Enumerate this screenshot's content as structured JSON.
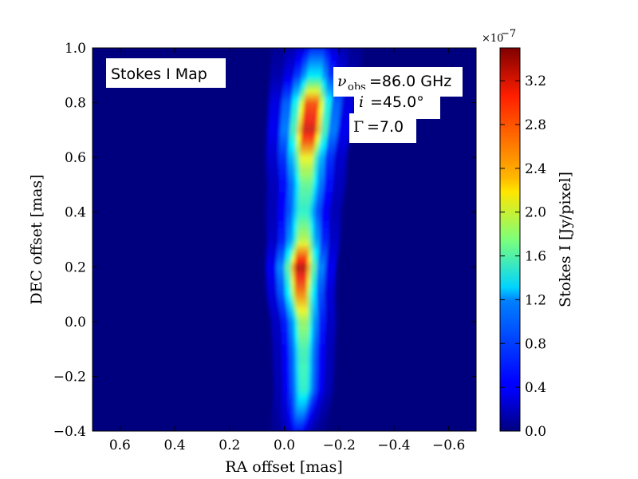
{
  "chart_data": {
    "type": "heatmap",
    "title": "",
    "xlabel": "RA offset [mas]",
    "ylabel": "DEC offset [mas]",
    "xlim": [
      0.7,
      -0.7
    ],
    "ylim": [
      -0.4,
      1.0
    ],
    "x_ticks": [
      "0.6",
      "0.4",
      "0.2",
      "0.0",
      "−0.2",
      "−0.4",
      "−0.6"
    ],
    "x_tick_values": [
      0.6,
      0.4,
      0.2,
      0.0,
      -0.2,
      -0.4,
      -0.6
    ],
    "y_ticks": [
      "−0.4",
      "−0.2",
      "0.0",
      "0.2",
      "0.4",
      "0.6",
      "0.8",
      "1.0"
    ],
    "y_tick_values": [
      -0.4,
      -0.2,
      0.0,
      0.2,
      0.4,
      0.6,
      0.8,
      1.0
    ],
    "colorbar": {
      "label": "Stokes I [Jy/pixel]",
      "multiplier": "×10",
      "exponent": "−7",
      "range": [
        0.0,
        3.5
      ],
      "ticks": [
        "0.0",
        "0.4",
        "0.8",
        "1.2",
        "1.6",
        "2.0",
        "2.4",
        "2.8",
        "3.2"
      ],
      "tick_values": [
        0.0,
        0.4,
        0.8,
        1.2,
        1.6,
        2.0,
        2.4,
        2.8,
        3.2
      ],
      "colormap": "jet"
    },
    "annotations": {
      "map_label": "Stokes I Map",
      "nu_symbol": "ν",
      "nu_subscript": "obs",
      "nu_value": "=86.0 GHz",
      "incl_symbol": "i",
      "incl_value": "=45.0°",
      "gamma_symbol": "Γ",
      "gamma_value": "=7.0"
    },
    "jet_ridge": [
      {
        "dec": -0.4,
        "ra": -0.05,
        "peak": 0.5
      },
      {
        "dec": -0.25,
        "ra": -0.07,
        "peak": 1.5
      },
      {
        "dec": -0.1,
        "ra": -0.07,
        "peak": 1.6
      },
      {
        "dec": 0.0,
        "ra": -0.07,
        "peak": 1.9
      },
      {
        "dec": 0.1,
        "ra": -0.06,
        "peak": 2.6
      },
      {
        "dec": 0.2,
        "ra": -0.06,
        "peak": 3.3
      },
      {
        "dec": 0.3,
        "ra": -0.07,
        "peak": 2.0
      },
      {
        "dec": 0.4,
        "ra": -0.07,
        "peak": 1.5
      },
      {
        "dec": 0.5,
        "ra": -0.08,
        "peak": 1.7
      },
      {
        "dec": 0.6,
        "ra": -0.08,
        "peak": 2.2
      },
      {
        "dec": 0.7,
        "ra": -0.09,
        "peak": 3.2
      },
      {
        "dec": 0.8,
        "ra": -0.1,
        "peak": 2.8
      },
      {
        "dec": 0.9,
        "ra": -0.11,
        "peak": 1.3
      },
      {
        "dec": 1.0,
        "ra": -0.12,
        "peak": 0.6
      }
    ],
    "grid": false
  }
}
